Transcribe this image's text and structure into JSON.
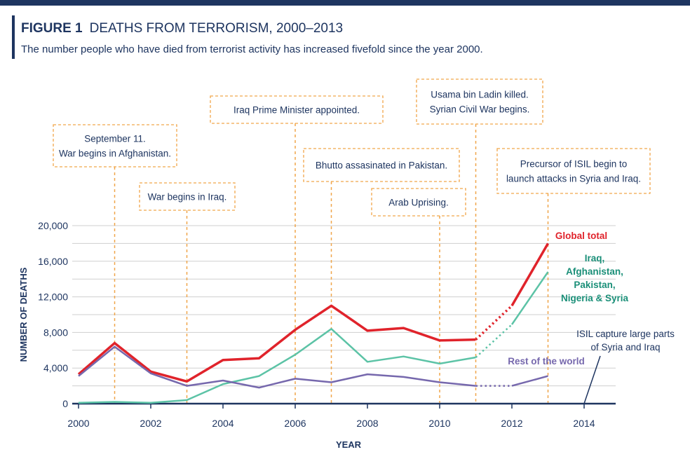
{
  "header": {
    "figure_label": "FIGURE 1",
    "title": "DEATHS FROM TERRORISM, 2000–2013",
    "subtitle": "The number people who have died from terrorist activity has increased fivefold since the year 2000."
  },
  "colors": {
    "accent_bar": "#1e3560",
    "global": "#e0232b",
    "iraq_group": "#5cc3a6",
    "rest": "#7668ad",
    "annotation_border": "#f0a64a",
    "axis": "#1e3560",
    "grid": "#cfcfcf",
    "iraq_label": "#1a8f78"
  },
  "chart_data": {
    "type": "line",
    "xlabel": "YEAR",
    "ylabel": "NUMBER OF DEATHS",
    "xlim": [
      2000,
      2015
    ],
    "ylim": [
      0,
      20000
    ],
    "x_ticks": [
      2000,
      2002,
      2004,
      2006,
      2008,
      2010,
      2012,
      2014
    ],
    "x_tick_labels": [
      "2000",
      "2002",
      "2004",
      "2006",
      "2008",
      "2010",
      "2012",
      "2014"
    ],
    "y_ticks": [
      0,
      4000,
      8000,
      12000,
      16000,
      20000
    ],
    "y_tick_labels": [
      "0",
      "4,000",
      "8,000",
      "12,000",
      "16,000",
      "20,000"
    ],
    "grid": true,
    "dotted_segment": [
      2011,
      2012
    ],
    "x": [
      2000,
      2001,
      2002,
      2003,
      2004,
      2005,
      2006,
      2007,
      2008,
      2009,
      2010,
      2011,
      2012,
      2013
    ],
    "series": [
      {
        "name": "Global total",
        "color": "#e0232b",
        "values": [
          3300,
          6800,
          3600,
          2500,
          4900,
          5100,
          8300,
          11000,
          8200,
          8500,
          7100,
          7200,
          11000,
          18000
        ],
        "label_lines": [
          "Global total"
        ]
      },
      {
        "name": "Iraq, Afghanistan, Pakistan, Nigeria & Syria",
        "color": "#5cc3a6",
        "values": [
          100,
          200,
          100,
          400,
          2200,
          3100,
          5500,
          8400,
          4700,
          5300,
          4500,
          5200,
          8900,
          14800
        ],
        "label_lines": [
          "Iraq,",
          "Afghanistan,",
          "Pakistan,",
          "Nigeria & Syria"
        ]
      },
      {
        "name": "Rest of the world",
        "color": "#7668ad",
        "values": [
          3100,
          6400,
          3400,
          2000,
          2600,
          1800,
          2800,
          2400,
          3300,
          3000,
          2400,
          2000,
          2000,
          3100
        ],
        "label_lines": [
          "Rest of the world"
        ]
      }
    ],
    "annotations": [
      {
        "x": 2001,
        "lines": [
          "September 11.",
          "War begins in Afghanistan."
        ]
      },
      {
        "x": 2003,
        "lines": [
          "War begins in Iraq."
        ]
      },
      {
        "x": 2006,
        "lines": [
          "Iraq Prime Minister appointed."
        ]
      },
      {
        "x": 2007,
        "lines": [
          "Bhutto assasinated in Pakistan."
        ]
      },
      {
        "x": 2010,
        "lines": [
          "Arab Uprising."
        ]
      },
      {
        "x": 2011,
        "lines": [
          "Usama bin Ladin killed.",
          "Syrian Civil War begins."
        ]
      },
      {
        "x": 2013,
        "lines": [
          "Precursor of ISIL begin to",
          "launch attacks in Syria and Iraq."
        ]
      }
    ],
    "note": {
      "x": 2014,
      "lines": [
        "ISIL capture large parts",
        "of Syria and Iraq"
      ]
    }
  }
}
